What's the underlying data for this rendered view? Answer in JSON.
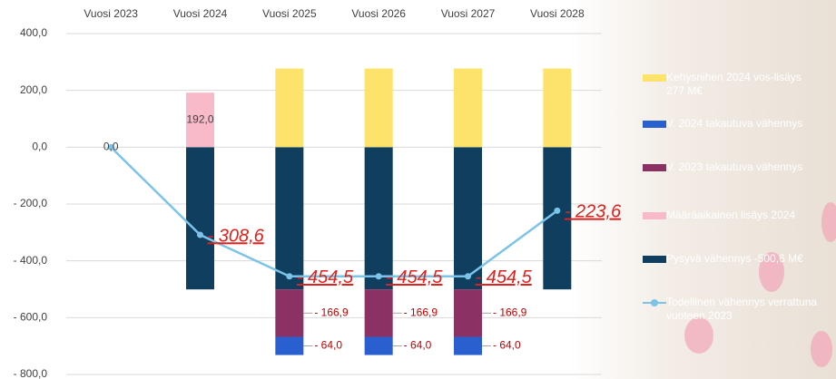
{
  "chart_data": {
    "type": "bar",
    "categories": [
      "Vuosi 2023",
      "Vuosi 2024",
      "Vuosi 2025",
      "Vuosi 2026",
      "Vuosi 2027",
      "Vuosi 2028"
    ],
    "ylim": [
      -800,
      400
    ],
    "yticks": [
      {
        "value": 400,
        "label": "400,0"
      },
      {
        "value": 200,
        "label": "200,0"
      },
      {
        "value": 0,
        "label": "0,0"
      },
      {
        "value": -200,
        "label": "- 200,0"
      },
      {
        "value": -400,
        "label": "- 400,0"
      },
      {
        "value": -600,
        "label": "- 600,0"
      },
      {
        "value": -800,
        "label": "- 800,0"
      }
    ],
    "grid": true,
    "series": [
      {
        "name": "Kehysriihen 2024 vos-lisäys 277 M€",
        "color": "#fde36b",
        "values": [
          null,
          null,
          277,
          277,
          277,
          277
        ]
      },
      {
        "name": "V. 2024 takautuva vähennys",
        "color": "#2a5fcf",
        "values": [
          null,
          null,
          -64,
          -64,
          -64,
          null
        ],
        "value_labels": [
          null,
          null,
          "- 64,0",
          "- 64,0",
          "- 64,0",
          null
        ]
      },
      {
        "name": "V. 2023 takautuva vähennys",
        "color": "#8c3163",
        "values": [
          null,
          null,
          -166.9,
          -166.9,
          -166.9,
          null
        ],
        "value_labels": [
          null,
          null,
          "- 166,9",
          "- 166,9",
          "- 166,9",
          null
        ]
      },
      {
        "name": "Määräaikainen lisäys 2024",
        "color": "#f8b9c9",
        "values": [
          null,
          192,
          null,
          null,
          null,
          null
        ],
        "value_labels": [
          null,
          "192,0",
          null,
          null,
          null,
          null
        ]
      },
      {
        "name": "Pysyvä vähennys -500,6 M€",
        "color": "#0f3e5e",
        "values": [
          null,
          -500.6,
          -500.6,
          -500.6,
          -500.6,
          -500.6
        ]
      },
      {
        "name": "Todellinen vähennys verrattuna vuoteen 2023",
        "color": "#7cc3ea",
        "type": "line",
        "values": [
          0,
          -308.6,
          -454.5,
          -454.5,
          -454.5,
          -223.6
        ],
        "value_labels": [
          "0,0",
          "- 308,6",
          "- 454,5",
          "- 454,5",
          "- 454,5",
          "- 223,6"
        ]
      }
    ]
  }
}
